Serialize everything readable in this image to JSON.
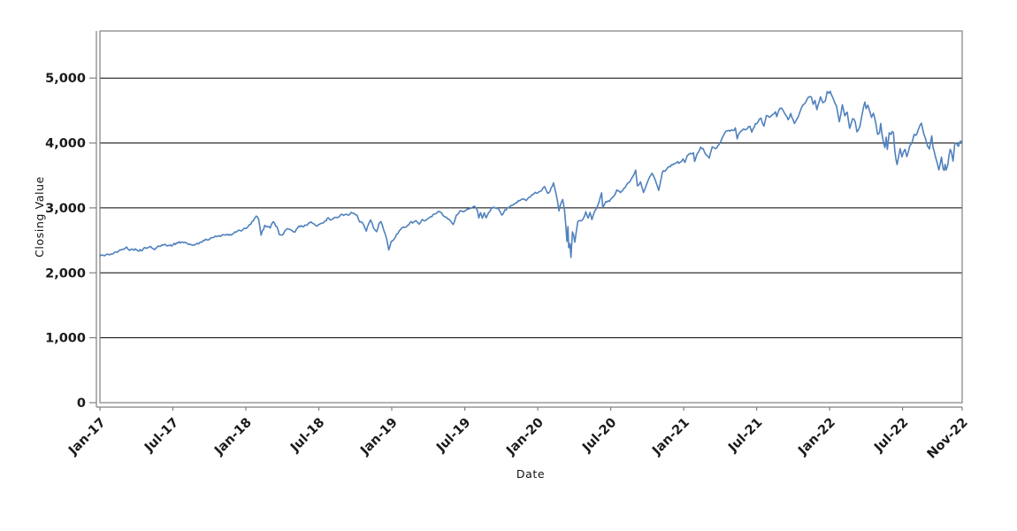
{
  "chart_data": {
    "type": "line",
    "title": "",
    "xlabel": "Date",
    "ylabel": "Closing Value",
    "series_name": "Closing Value",
    "line_color": "#4f81bd",
    "gridline_color": "#000000",
    "axis_color": "#808080",
    "tick_label_color": "#1a1a1a",
    "background_color": "#ffffff",
    "grid": "horizontal",
    "legend": "none",
    "xlim": [
      0,
      70.9
    ],
    "ylim": [
      0,
      5725
    ],
    "y_ticks": [
      {
        "value": 0,
        "label": "0"
      },
      {
        "value": 1000,
        "label": "1,000"
      },
      {
        "value": 2000,
        "label": "2,000"
      },
      {
        "value": 3000,
        "label": "3,000"
      },
      {
        "value": 4000,
        "label": "4,000"
      },
      {
        "value": 5000,
        "label": "5,000"
      }
    ],
    "x_ticks": [
      {
        "m": 0,
        "label": "Jan-17"
      },
      {
        "m": 6,
        "label": "Jul-17"
      },
      {
        "m": 12,
        "label": "Jan-18"
      },
      {
        "m": 18,
        "label": "Jul-18"
      },
      {
        "m": 24,
        "label": "Jan-19"
      },
      {
        "m": 30,
        "label": "Jul-19"
      },
      {
        "m": 36,
        "label": "Jan-20"
      },
      {
        "m": 42,
        "label": "Jul-20"
      },
      {
        "m": 48,
        "label": "Jan-21"
      },
      {
        "m": 54,
        "label": "Jul-21"
      },
      {
        "m": 60,
        "label": "Jan-22"
      },
      {
        "m": 66,
        "label": "Jul-22"
      },
      {
        "m": 70.9,
        "label": "Nov-22"
      }
    ],
    "points_note": "x = months since Jan-2017, y = index closing value",
    "points": [
      [
        0,
        2258
      ],
      [
        0.25,
        2271
      ],
      [
        0.5,
        2280
      ],
      [
        0.8,
        2276
      ],
      [
        1.1,
        2294
      ],
      [
        1.45,
        2316
      ],
      [
        1.75,
        2351
      ],
      [
        2.0,
        2363
      ],
      [
        2.2,
        2396
      ],
      [
        2.45,
        2344
      ],
      [
        2.7,
        2362
      ],
      [
        3.0,
        2356
      ],
      [
        3.4,
        2339
      ],
      [
        3.7,
        2389
      ],
      [
        4.0,
        2388
      ],
      [
        4.2,
        2400
      ],
      [
        4.5,
        2357
      ],
      [
        4.8,
        2415
      ],
      [
        5.1,
        2430
      ],
      [
        5.4,
        2434
      ],
      [
        5.7,
        2420
      ],
      [
        6.0,
        2429
      ],
      [
        6.3,
        2460
      ],
      [
        6.7,
        2473
      ],
      [
        7.0,
        2470
      ],
      [
        7.3,
        2438
      ],
      [
        7.6,
        2425
      ],
      [
        7.9,
        2444
      ],
      [
        8.2,
        2465
      ],
      [
        8.5,
        2500
      ],
      [
        8.8,
        2507
      ],
      [
        9.1,
        2537
      ],
      [
        9.4,
        2550
      ],
      [
        9.7,
        2562
      ],
      [
        10.0,
        2575
      ],
      [
        10.3,
        2582
      ],
      [
        10.6,
        2579
      ],
      [
        10.9,
        2599
      ],
      [
        11.2,
        2627
      ],
      [
        11.5,
        2652
      ],
      [
        11.8,
        2674
      ],
      [
        12.1,
        2696
      ],
      [
        12.4,
        2746
      ],
      [
        12.7,
        2833
      ],
      [
        12.85,
        2873
      ],
      [
        13.05,
        2822
      ],
      [
        13.25,
        2581
      ],
      [
        13.55,
        2732
      ],
      [
        13.8,
        2714
      ],
      [
        14.0,
        2691
      ],
      [
        14.25,
        2787
      ],
      [
        14.55,
        2712
      ],
      [
        14.75,
        2588
      ],
      [
        15.0,
        2582
      ],
      [
        15.3,
        2663
      ],
      [
        15.55,
        2670
      ],
      [
        15.8,
        2648
      ],
      [
        16.05,
        2630
      ],
      [
        16.35,
        2720
      ],
      [
        16.65,
        2712
      ],
      [
        16.95,
        2735
      ],
      [
        17.35,
        2786
      ],
      [
        17.6,
        2754
      ],
      [
        17.85,
        2718
      ],
      [
        18.15,
        2759
      ],
      [
        18.5,
        2798
      ],
      [
        18.8,
        2846
      ],
      [
        19.0,
        2813
      ],
      [
        19.3,
        2853
      ],
      [
        19.6,
        2857
      ],
      [
        19.9,
        2902
      ],
      [
        20.15,
        2897
      ],
      [
        20.4,
        2888
      ],
      [
        20.65,
        2931
      ],
      [
        20.9,
        2914
      ],
      [
        21.15,
        2885
      ],
      [
        21.35,
        2785
      ],
      [
        21.6,
        2768
      ],
      [
        21.9,
        2641
      ],
      [
        22.1,
        2755
      ],
      [
        22.25,
        2814
      ],
      [
        22.5,
        2690
      ],
      [
        22.75,
        2633
      ],
      [
        22.95,
        2760
      ],
      [
        23.1,
        2790
      ],
      [
        23.35,
        2651
      ],
      [
        23.6,
        2506
      ],
      [
        23.75,
        2351
      ],
      [
        23.95,
        2486
      ],
      [
        24.15,
        2510
      ],
      [
        24.4,
        2596
      ],
      [
        24.7,
        2664
      ],
      [
        24.95,
        2704
      ],
      [
        25.2,
        2707
      ],
      [
        25.5,
        2775
      ],
      [
        25.8,
        2784
      ],
      [
        26.0,
        2803
      ],
      [
        26.25,
        2749
      ],
      [
        26.5,
        2822
      ],
      [
        26.7,
        2801
      ],
      [
        26.95,
        2834
      ],
      [
        27.2,
        2867
      ],
      [
        27.5,
        2906
      ],
      [
        27.9,
        2946
      ],
      [
        28.1,
        2924
      ],
      [
        28.4,
        2860
      ],
      [
        28.7,
        2826
      ],
      [
        29.05,
        2744
      ],
      [
        29.3,
        2886
      ],
      [
        29.6,
        2954
      ],
      [
        29.85,
        2942
      ],
      [
        30.1,
        2964
      ],
      [
        30.45,
        2995
      ],
      [
        30.8,
        3026
      ],
      [
        31.05,
        2953
      ],
      [
        31.15,
        2845
      ],
      [
        31.3,
        2926
      ],
      [
        31.45,
        2841
      ],
      [
        31.6,
        2924
      ],
      [
        31.75,
        2847
      ],
      [
        31.95,
        2926
      ],
      [
        32.15,
        2978
      ],
      [
        32.4,
        3010
      ],
      [
        32.65,
        2992
      ],
      [
        32.85,
        2962
      ],
      [
        33.05,
        2888
      ],
      [
        33.3,
        2970
      ],
      [
        33.6,
        3007
      ],
      [
        33.9,
        3038
      ],
      [
        34.2,
        3078
      ],
      [
        34.5,
        3110
      ],
      [
        34.8,
        3141
      ],
      [
        35.05,
        3113
      ],
      [
        35.4,
        3169
      ],
      [
        35.8,
        3240
      ],
      [
        36.0,
        3231
      ],
      [
        36.3,
        3265
      ],
      [
        36.55,
        3330
      ],
      [
        36.8,
        3226
      ],
      [
        37.0,
        3249
      ],
      [
        37.3,
        3386
      ],
      [
        37.6,
        3128
      ],
      [
        37.75,
        2954
      ],
      [
        37.95,
        3090
      ],
      [
        38.05,
        3130
      ],
      [
        38.2,
        2972
      ],
      [
        38.3,
        2746
      ],
      [
        38.4,
        2481
      ],
      [
        38.48,
        2711
      ],
      [
        38.55,
        2386
      ],
      [
        38.65,
        2447
      ],
      [
        38.73,
        2237
      ],
      [
        38.85,
        2630
      ],
      [
        38.95,
        2585
      ],
      [
        39.05,
        2471
      ],
      [
        39.3,
        2790
      ],
      [
        39.55,
        2800
      ],
      [
        39.75,
        2837
      ],
      [
        39.95,
        2940
      ],
      [
        40.15,
        2843
      ],
      [
        40.3,
        2930
      ],
      [
        40.45,
        2820
      ],
      [
        40.7,
        2955
      ],
      [
        40.95,
        3044
      ],
      [
        41.25,
        3232
      ],
      [
        41.35,
        3002
      ],
      [
        41.6,
        3098
      ],
      [
        41.9,
        3100
      ],
      [
        42.2,
        3170
      ],
      [
        42.5,
        3276
      ],
      [
        42.8,
        3235
      ],
      [
        43.1,
        3306
      ],
      [
        43.5,
        3390
      ],
      [
        43.9,
        3508
      ],
      [
        44.05,
        3581
      ],
      [
        44.2,
        3339
      ],
      [
        44.45,
        3401
      ],
      [
        44.7,
        3237
      ],
      [
        44.95,
        3363
      ],
      [
        45.2,
        3477
      ],
      [
        45.4,
        3534
      ],
      [
        45.65,
        3435
      ],
      [
        45.95,
        3270
      ],
      [
        46.25,
        3550
      ],
      [
        46.55,
        3582
      ],
      [
        46.8,
        3638
      ],
      [
        47.1,
        3663
      ],
      [
        47.4,
        3695
      ],
      [
        47.7,
        3703
      ],
      [
        47.95,
        3756
      ],
      [
        48.1,
        3701
      ],
      [
        48.3,
        3804
      ],
      [
        48.55,
        3841
      ],
      [
        48.8,
        3850
      ],
      [
        48.9,
        3714
      ],
      [
        49.1,
        3830
      ],
      [
        49.4,
        3935
      ],
      [
        49.6,
        3913
      ],
      [
        49.8,
        3829
      ],
      [
        50.1,
        3768
      ],
      [
        50.35,
        3939
      ],
      [
        50.6,
        3913
      ],
      [
        50.9,
        3975
      ],
      [
        51.05,
        4020
      ],
      [
        51.3,
        4128
      ],
      [
        51.5,
        4185
      ],
      [
        51.8,
        4181
      ],
      [
        52.05,
        4192
      ],
      [
        52.25,
        4233
      ],
      [
        52.4,
        4063
      ],
      [
        52.6,
        4159
      ],
      [
        52.85,
        4204
      ],
      [
        53.05,
        4202
      ],
      [
        53.25,
        4227
      ],
      [
        53.45,
        4255
      ],
      [
        53.6,
        4166
      ],
      [
        53.9,
        4298
      ],
      [
        54.1,
        4320
      ],
      [
        54.35,
        4384
      ],
      [
        54.6,
        4258
      ],
      [
        54.8,
        4422
      ],
      [
        55.05,
        4395
      ],
      [
        55.3,
        4436
      ],
      [
        55.55,
        4480
      ],
      [
        55.65,
        4406
      ],
      [
        55.9,
        4529
      ],
      [
        56.05,
        4537
      ],
      [
        56.3,
        4458
      ],
      [
        56.6,
        4358
      ],
      [
        56.8,
        4455
      ],
      [
        57.1,
        4300
      ],
      [
        57.3,
        4363
      ],
      [
        57.55,
        4472
      ],
      [
        57.7,
        4550
      ],
      [
        57.95,
        4605
      ],
      [
        58.25,
        4702
      ],
      [
        58.5,
        4705
      ],
      [
        58.65,
        4595
      ],
      [
        58.8,
        4655
      ],
      [
        58.95,
        4513
      ],
      [
        59.25,
        4712
      ],
      [
        59.45,
        4621
      ],
      [
        59.65,
        4649
      ],
      [
        59.8,
        4791
      ],
      [
        59.95,
        4766
      ],
      [
        60.05,
        4797
      ],
      [
        60.35,
        4659
      ],
      [
        60.55,
        4577
      ],
      [
        60.8,
        4326
      ],
      [
        61.05,
        4589
      ],
      [
        61.25,
        4419
      ],
      [
        61.45,
        4475
      ],
      [
        61.65,
        4225
      ],
      [
        61.75,
        4288
      ],
      [
        61.9,
        4374
      ],
      [
        62.1,
        4328
      ],
      [
        62.25,
        4171
      ],
      [
        62.5,
        4263
      ],
      [
        62.7,
        4463
      ],
      [
        62.9,
        4631
      ],
      [
        63.0,
        4530
      ],
      [
        63.15,
        4583
      ],
      [
        63.3,
        4488
      ],
      [
        63.45,
        4393
      ],
      [
        63.6,
        4459
      ],
      [
        63.8,
        4296
      ],
      [
        63.95,
        4132
      ],
      [
        64.1,
        4155
      ],
      [
        64.2,
        4300
      ],
      [
        64.3,
        4147
      ],
      [
        64.45,
        3991
      ],
      [
        64.55,
        3930
      ],
      [
        64.65,
        4089
      ],
      [
        64.75,
        3901
      ],
      [
        64.9,
        4158
      ],
      [
        65.05,
        4132
      ],
      [
        65.15,
        4177
      ],
      [
        65.25,
        4160
      ],
      [
        65.35,
        3901
      ],
      [
        65.45,
        3750
      ],
      [
        65.55,
        3667
      ],
      [
        65.8,
        3912
      ],
      [
        65.95,
        3785
      ],
      [
        66.2,
        3903
      ],
      [
        66.35,
        3790
      ],
      [
        66.6,
        3962
      ],
      [
        66.8,
        4023
      ],
      [
        66.95,
        4130
      ],
      [
        67.1,
        4118
      ],
      [
        67.3,
        4210
      ],
      [
        67.45,
        4280
      ],
      [
        67.55,
        4305
      ],
      [
        67.75,
        4138
      ],
      [
        67.9,
        4058
      ],
      [
        68.05,
        3955
      ],
      [
        68.2,
        3908
      ],
      [
        68.4,
        4110
      ],
      [
        68.5,
        3933
      ],
      [
        68.7,
        3790
      ],
      [
        68.85,
        3693
      ],
      [
        68.98,
        3586
      ],
      [
        69.1,
        3678
      ],
      [
        69.2,
        3783
      ],
      [
        69.32,
        3612
      ],
      [
        69.42,
        3577
      ],
      [
        69.5,
        3670
      ],
      [
        69.58,
        3583
      ],
      [
        69.72,
        3665
      ],
      [
        69.82,
        3808
      ],
      [
        69.92,
        3901
      ],
      [
        70.02,
        3856
      ],
      [
        70.15,
        3720
      ],
      [
        70.3,
        3993
      ],
      [
        70.45,
        3992
      ],
      [
        70.58,
        3947
      ],
      [
        70.75,
        4027
      ],
      [
        70.9,
        4026
      ]
    ]
  }
}
